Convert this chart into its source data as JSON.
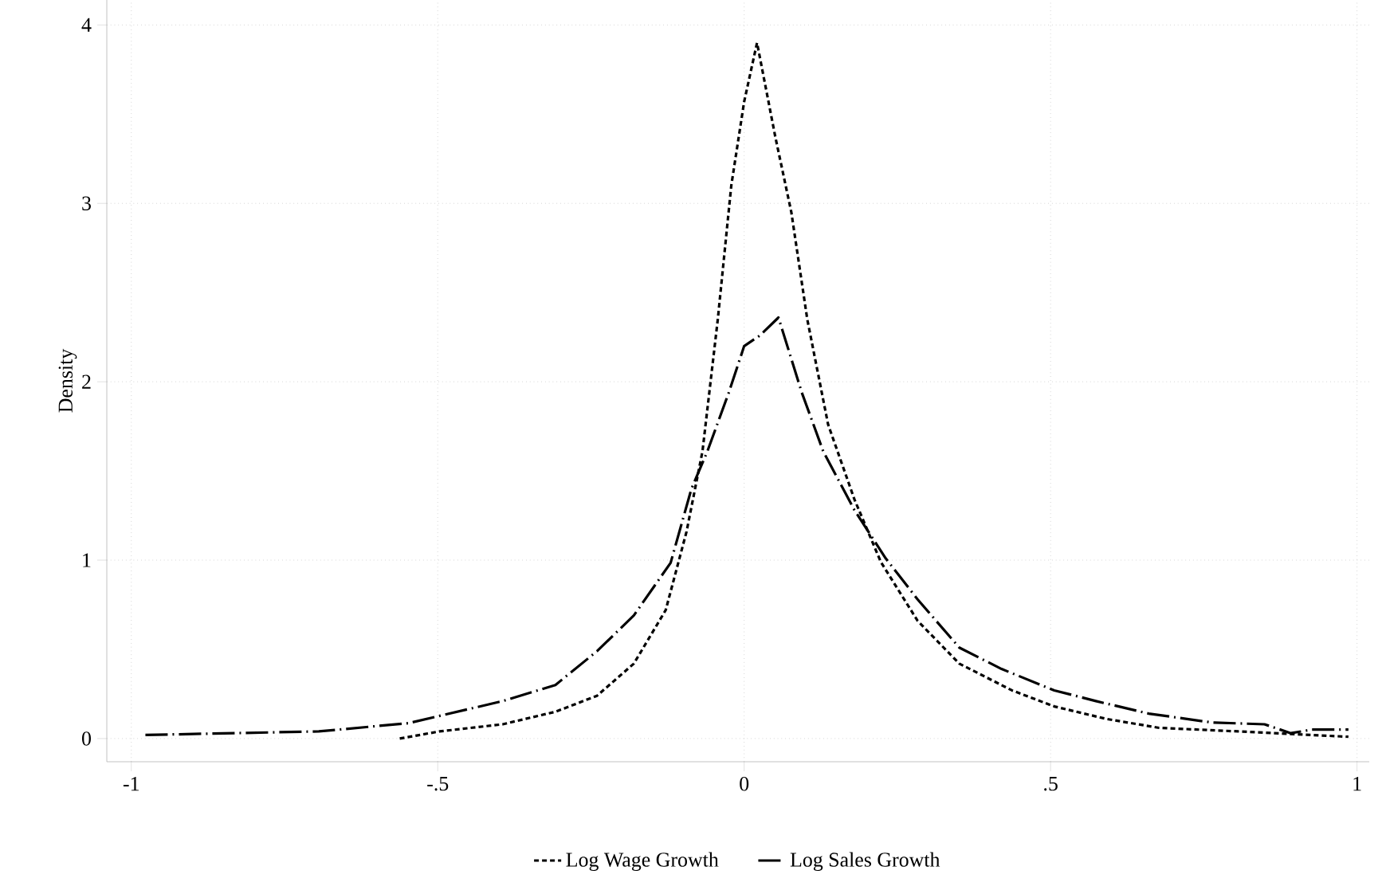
{
  "chart_data": {
    "type": "line",
    "ylabel": "Density",
    "xlim": [
      -1.04,
      1.02
    ],
    "ylim": [
      -0.13,
      4.14
    ],
    "xticks": [
      {
        "value": -1,
        "label": "-1"
      },
      {
        "value": -0.5,
        "label": "-.5"
      },
      0,
      {
        "value": 0.5,
        "label": ".5"
      },
      1
    ],
    "yticks": [
      0,
      1,
      2,
      3,
      4
    ],
    "grid": true,
    "legend": "bottom",
    "marker": "none",
    "series": [
      {
        "name": "Log Wage Growth",
        "color": "#000000",
        "line_style": "dotted",
        "x": [
          -0.562,
          -0.497,
          -0.394,
          -0.308,
          -0.24,
          -0.18,
          -0.128,
          -0.094,
          -0.068,
          -0.043,
          -0.021,
          0.0,
          0.021,
          0.051,
          0.077,
          0.103,
          0.137,
          0.18,
          0.223,
          0.283,
          0.351,
          0.437,
          0.506,
          0.591,
          0.677,
          0.806,
          0.986
        ],
        "values": [
          0.0,
          0.04,
          0.08,
          0.15,
          0.24,
          0.42,
          0.72,
          1.16,
          1.61,
          2.35,
          3.1,
          3.57,
          3.9,
          3.37,
          2.95,
          2.35,
          1.76,
          1.34,
          0.99,
          0.66,
          0.42,
          0.27,
          0.18,
          0.11,
          0.06,
          0.04,
          0.01
        ]
      },
      {
        "name": "Log Sales Growth",
        "color": "#000000",
        "line_style": "dashed",
        "x": [
          -0.977,
          -0.694,
          -0.548,
          -0.394,
          -0.308,
          -0.24,
          -0.18,
          -0.12,
          -0.086,
          -0.06,
          -0.025,
          0.0,
          0.026,
          0.056,
          0.094,
          0.129,
          0.18,
          0.231,
          0.283,
          0.351,
          0.42,
          0.506,
          0.574,
          0.66,
          0.763,
          0.849,
          0.892,
          0.926,
          0.986
        ],
        "values": [
          0.02,
          0.04,
          0.086,
          0.21,
          0.3,
          0.49,
          0.69,
          0.985,
          1.4,
          1.61,
          1.94,
          2.2,
          2.26,
          2.36,
          1.94,
          1.61,
          1.28,
          1.01,
          0.78,
          0.51,
          0.39,
          0.27,
          0.21,
          0.14,
          0.09,
          0.08,
          0.03,
          0.05,
          0.05
        ]
      }
    ]
  }
}
